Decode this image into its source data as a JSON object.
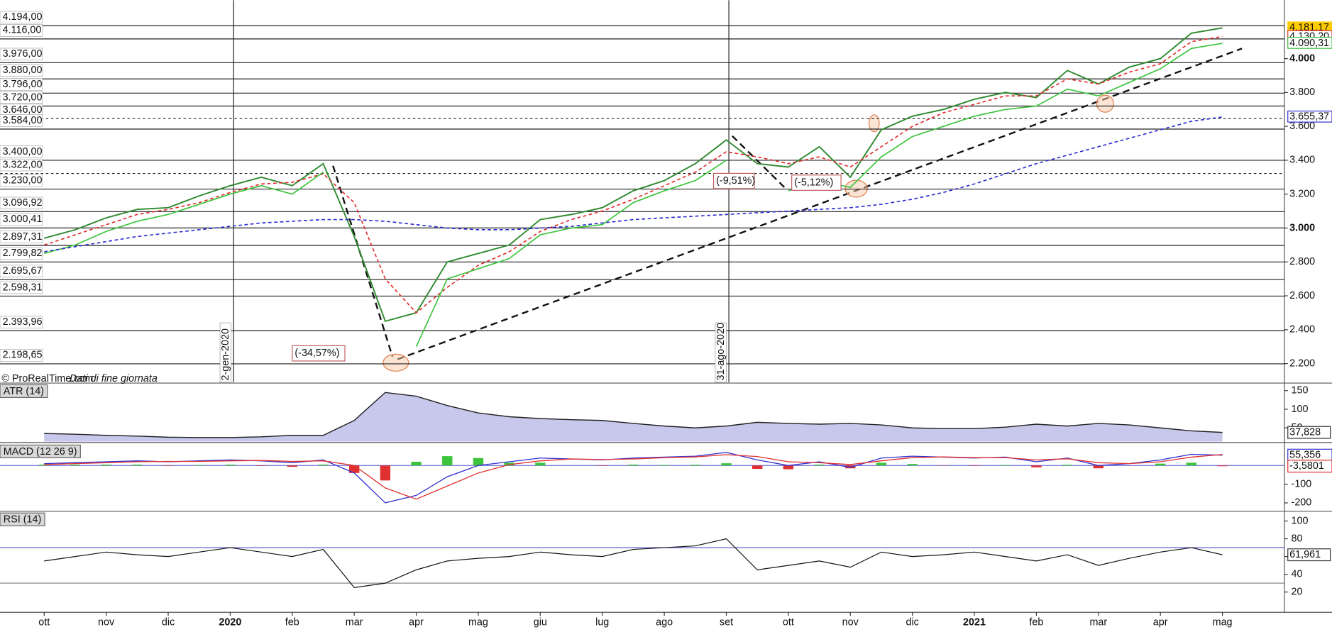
{
  "chart_data": [
    {
      "type": "line",
      "source": "© ProRealTime.com",
      "source_note": "Dati di fine giornata",
      "categories": [
        "ott",
        null,
        "nov",
        null,
        "dic",
        null,
        "2020",
        null,
        "feb",
        null,
        "mar",
        null,
        "apr",
        null,
        "mag",
        null,
        "giu",
        null,
        "lug",
        null,
        "ago",
        null,
        "set",
        null,
        "ott",
        null,
        "nov",
        null,
        "dic",
        null,
        "2021",
        null,
        "feb",
        null,
        "mar",
        null,
        "apr",
        null,
        "mag"
      ],
      "ylim": [
        2090,
        4345
      ],
      "yticks": [
        {
          "value": 2200,
          "label": "2.200"
        },
        {
          "value": 2400,
          "label": "2.400"
        },
        {
          "value": 2600,
          "label": "2.600"
        },
        {
          "value": 2800,
          "label": "2.800"
        },
        {
          "value": 3000,
          "label": "3.000"
        },
        {
          "value": 3200,
          "label": "3.200"
        },
        {
          "value": 3400,
          "label": "3.400"
        },
        {
          "value": 3600,
          "label": "3.600"
        },
        {
          "value": 3800,
          "label": "3.800"
        },
        {
          "value": 4000,
          "label": "4.000"
        }
      ],
      "levels": [
        {
          "value": 4194,
          "label": "4.194,00"
        },
        {
          "value": 4116,
          "label": "4.116,00"
        },
        {
          "value": 3976,
          "label": "3.976,00"
        },
        {
          "value": 3880,
          "label": "3.880,00"
        },
        {
          "value": 3796,
          "label": "3.796,00"
        },
        {
          "value": 3720,
          "label": "3.720,00"
        },
        {
          "value": 3646,
          "label": "3.646,00",
          "dashed": true
        },
        {
          "value": 3584,
          "label": "3.584,00"
        },
        {
          "value": 3400,
          "label": "3.400,00"
        },
        {
          "value": 3322,
          "label": "3.322,00",
          "dashed": true
        },
        {
          "value": 3230,
          "label": "3.230,00"
        },
        {
          "value": 3096.92,
          "label": "3.096,92"
        },
        {
          "value": 3000.41,
          "label": "3.000,41"
        },
        {
          "value": 2897.31,
          "label": "2.897,31"
        },
        {
          "value": 2799.82,
          "label": "2.799,82"
        },
        {
          "value": 2695.67,
          "label": "2.695,67"
        },
        {
          "value": 2598.31,
          "label": "2.598,31"
        },
        {
          "value": 2393.96,
          "label": "2.393,96"
        },
        {
          "value": 2198.65,
          "label": "2.198,65"
        }
      ],
      "series": [
        {
          "color": "#2f8a2f",
          "values": [
            2940,
            2990,
            3060,
            3110,
            3120,
            3190,
            3250,
            3300,
            3250,
            3380,
            2950,
            2450,
            2500,
            2800,
            2850,
            2900,
            3050,
            3080,
            3120,
            3220,
            3280,
            3380,
            3520,
            3380,
            3360,
            3480,
            3300,
            3580,
            3660,
            3700,
            3760,
            3800,
            3770,
            3930,
            3850,
            3950,
            4000,
            4150,
            4181.17
          ]
        },
        {
          "color": "#e03030",
          "dashed": true,
          "values": [
            2900,
            2960,
            3020,
            3080,
            3110,
            3150,
            3210,
            3260,
            3270,
            3320,
            3150,
            2700,
            2500,
            2650,
            2780,
            2860,
            2980,
            3050,
            3100,
            3170,
            3250,
            3330,
            3450,
            3420,
            3380,
            3420,
            3360,
            3480,
            3600,
            3680,
            3730,
            3780,
            3780,
            3880,
            3850,
            3920,
            3970,
            4100,
            4130.2
          ]
        },
        {
          "color": "#3cc43c",
          "values": [
            2850,
            2900,
            2980,
            3040,
            3080,
            3140,
            3200,
            3250,
            3200,
            3330,
            null,
            null,
            2300,
            2700,
            2760,
            2820,
            2960,
            3000,
            3020,
            3150,
            3220,
            3280,
            3400,
            null,
            3220,
            3280,
            3240,
            3420,
            3540,
            3600,
            3660,
            3700,
            3720,
            3820,
            3780,
            3860,
            3940,
            4060,
            4090.31
          ]
        },
        {
          "color": "#3030d0",
          "dashed": true,
          "values": [
            2860,
            2890,
            2920,
            2950,
            2970,
            2990,
            3010,
            3030,
            3040,
            3050,
            3050,
            3040,
            3020,
            3000,
            2990,
            2990,
            3000,
            3010,
            3030,
            3050,
            3060,
            3070,
            3080,
            3090,
            3100,
            3110,
            3120,
            3140,
            3170,
            3210,
            3260,
            3320,
            3380,
            3430,
            3480,
            3530,
            3580,
            3630,
            3655.37
          ]
        }
      ],
      "last_values": [
        {
          "value": 4181.17,
          "label": "4.181,17",
          "color": "#ffcc00"
        },
        {
          "value": 4130.2,
          "label": "4.130,20",
          "color": "#e03030"
        },
        {
          "value": 4090.31,
          "label": "4.090,31",
          "color": "#3cc43c"
        },
        {
          "value": 3655.37,
          "label": "3.655,37",
          "color": "#3030d0"
        }
      ],
      "date_markers": [
        "2-gen-2020",
        "31-ago-2020"
      ],
      "annotations": [
        "(-34,57%)",
        "(-9,51%)",
        "(-5,12%)"
      ]
    },
    {
      "type": "area",
      "title": "ATR (14)",
      "color": "#5a5aa8",
      "ylim": [
        13,
        168
      ],
      "yticks": [
        50,
        100,
        150
      ],
      "values": [
        35,
        33,
        30,
        28,
        25,
        24,
        24,
        26,
        30,
        30,
        70,
        145,
        135,
        110,
        90,
        80,
        75,
        72,
        70,
        62,
        55,
        50,
        55,
        65,
        62,
        60,
        62,
        58,
        50,
        48,
        48,
        52,
        60,
        55,
        62,
        58,
        50,
        42,
        37.828
      ],
      "last_value": {
        "value": 37.828,
        "label": "37,828"
      }
    },
    {
      "type": "macd",
      "title": "MACD (12 26 9)",
      "ylim": [
        -236,
        114
      ],
      "yticks": [
        -100,
        -200
      ],
      "series": [
        {
          "color": "#3030d0",
          "values": [
            10,
            15,
            20,
            25,
            20,
            25,
            30,
            25,
            15,
            30,
            -40,
            -200,
            -160,
            -60,
            0,
            20,
            40,
            35,
            30,
            40,
            45,
            50,
            70,
            30,
            0,
            20,
            -10,
            40,
            50,
            45,
            40,
            45,
            20,
            40,
            0,
            10,
            30,
            60,
            55.356
          ]
        },
        {
          "color": "#e03030",
          "values": [
            5,
            10,
            15,
            20,
            22,
            22,
            25,
            27,
            22,
            25,
            0,
            -120,
            -180,
            -110,
            -40,
            5,
            25,
            35,
            32,
            35,
            42,
            46,
            58,
            48,
            20,
            15,
            5,
            25,
            42,
            46,
            42,
            42,
            30,
            36,
            15,
            10,
            20,
            45,
            58.9361
          ]
        }
      ],
      "histogram": {
        "up_color": "#3cc43c",
        "down_color": "#e03030",
        "values": [
          5,
          5,
          5,
          5,
          -2,
          3,
          5,
          -2,
          -7,
          5,
          -40,
          -80,
          20,
          50,
          40,
          15,
          15,
          0,
          -2,
          5,
          3,
          4,
          12,
          -18,
          -20,
          5,
          -15,
          15,
          8,
          -1,
          -2,
          3,
          -10,
          4,
          -15,
          0,
          10,
          15,
          -3.5801
        ]
      },
      "last_values": [
        {
          "value": 55.356,
          "label": "55,356",
          "color": "#3030d0"
        },
        {
          "value": -3.5801,
          "label": "-3,5801",
          "color": "#e03030"
        }
      ]
    },
    {
      "type": "line",
      "title": "RSI (14)",
      "color": "#111111",
      "ylim": [
        0,
        110
      ],
      "yticks": [
        20,
        40,
        60,
        80,
        100
      ],
      "levels": [
        {
          "value": 70,
          "color": "#5050d0"
        },
        {
          "value": 30,
          "color": "#888888"
        }
      ],
      "values": [
        55,
        60,
        65,
        62,
        60,
        65,
        70,
        65,
        60,
        68,
        25,
        30,
        45,
        55,
        58,
        60,
        65,
        62,
        60,
        68,
        70,
        72,
        80,
        45,
        50,
        55,
        48,
        65,
        60,
        62,
        65,
        60,
        55,
        62,
        50,
        58,
        65,
        70,
        61.961
      ],
      "last_value": {
        "value": 61.961,
        "label": "61,961"
      }
    }
  ]
}
